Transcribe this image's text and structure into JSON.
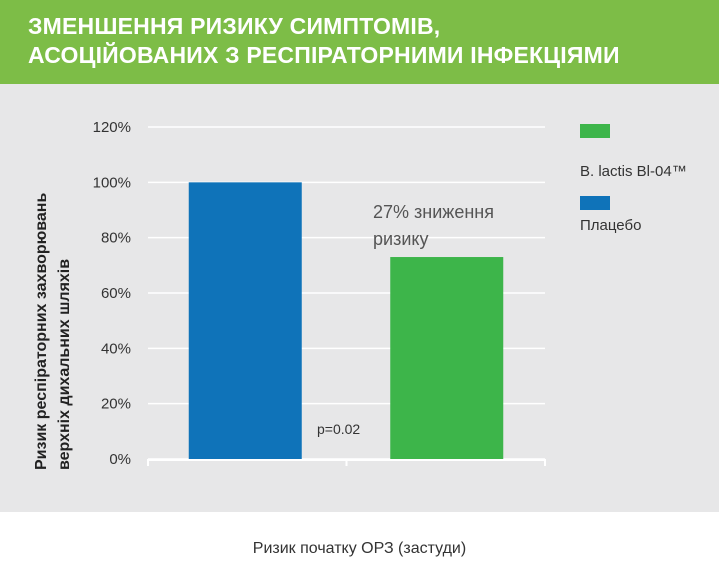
{
  "header": {
    "title_line1": "ЗМЕНШЕННЯ РИЗИКУ СИМПТОМІВ,",
    "title_line2": "АСОЦІЙОВАНИХ З РЕСПІРАТОРНИМИ ІНФЕКЦІЯМИ"
  },
  "colors": {
    "header_bg": "#7dbd47",
    "panel_bg": "#e7e7e8",
    "green": "#3db54a",
    "blue": "#0f73b9"
  },
  "chart_data": {
    "type": "bar",
    "categories": [
      "Плацебо",
      "B. lactis Bl-04™"
    ],
    "values": [
      100,
      73
    ],
    "bar_colors": [
      "#0f73b9",
      "#3db54a"
    ],
    "ylim": [
      0,
      120
    ],
    "yticks": [
      "0%",
      "20%",
      "40%",
      "60%",
      "80%",
      "100%",
      "120%"
    ],
    "ylabel_line1": "Ризик респіраторних захворювань",
    "ylabel_line2": "верхніх дихальних шляхів",
    "xlabel": "Ризик початку ОРЗ (застуди)",
    "annotation_line1": "27% зниження",
    "annotation_line2": "ризику",
    "p_value": "p=0.02",
    "grid": true,
    "legend": [
      {
        "label": "B. lactis Bl-04™",
        "color": "#3db54a"
      },
      {
        "label": "Плацебо",
        "color": "#0f73b9"
      }
    ],
    "legend_position": "right"
  }
}
